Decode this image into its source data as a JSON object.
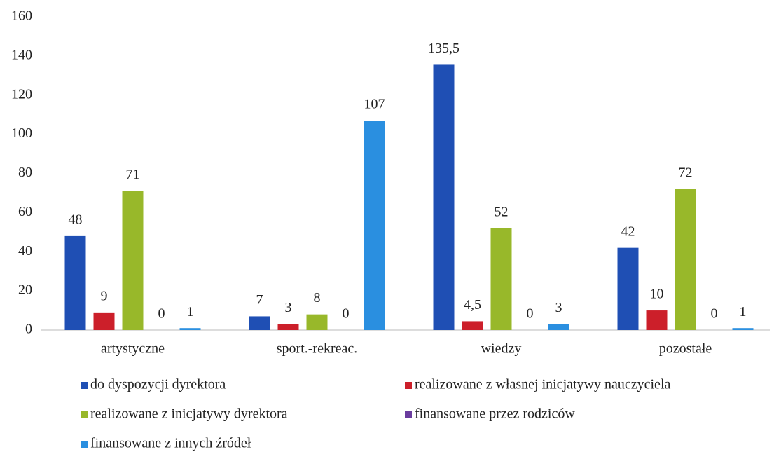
{
  "chart_data": {
    "type": "bar",
    "categories": [
      "artystyczne",
      "sport.-rekreac.",
      "wiedzy",
      "pozostałe"
    ],
    "series": [
      {
        "name": "do dyspozycji dyrektora",
        "color": "#1f4fb4",
        "values": [
          48,
          7,
          135.5,
          42
        ],
        "value_labels": [
          "48",
          "7",
          "135,5",
          "42"
        ]
      },
      {
        "name": "realizowane z własnej inicjatywy nauczyciela",
        "color": "#cc1f2a",
        "values": [
          9,
          3,
          4.5,
          10
        ],
        "value_labels": [
          "9",
          "3",
          "4,5",
          "10"
        ]
      },
      {
        "name": "realizowane z inicjatywy dyrektora",
        "color": "#98b82a",
        "values": [
          71,
          8,
          52,
          72
        ]
      },
      {
        "name": "finansowane przez rodziców",
        "color": "#6a3c9e",
        "values": [
          0,
          0,
          0,
          0
        ]
      },
      {
        "name": "finansowane z innych źródeł",
        "color": "#2a8fe0",
        "values": [
          1,
          107,
          3,
          1
        ]
      }
    ],
    "ylim": [
      0,
      160
    ],
    "yticks": [
      0,
      20,
      40,
      60,
      80,
      100,
      120,
      140,
      160
    ],
    "grid": false
  }
}
